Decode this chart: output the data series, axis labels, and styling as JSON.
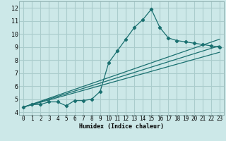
{
  "xlabel": "Humidex (Indice chaleur)",
  "xlim": [
    -0.5,
    23.5
  ],
  "ylim": [
    3.8,
    12.5
  ],
  "bg_color": "#cce8e8",
  "grid_color": "#aacccc",
  "line_color": "#1a7070",
  "xticks": [
    0,
    1,
    2,
    3,
    4,
    5,
    6,
    7,
    8,
    9,
    10,
    11,
    12,
    13,
    14,
    15,
    16,
    17,
    18,
    19,
    20,
    21,
    22,
    23
  ],
  "yticks": [
    4,
    5,
    6,
    7,
    8,
    9,
    10,
    11,
    12
  ],
  "series1_x": [
    0,
    1,
    2,
    3,
    4,
    5,
    6,
    7,
    8,
    9,
    10,
    11,
    12,
    13,
    14,
    15,
    16,
    17,
    18,
    19,
    20,
    21,
    22,
    23
  ],
  "series1_y": [
    4.4,
    4.6,
    4.6,
    4.8,
    4.8,
    4.5,
    4.9,
    4.9,
    5.0,
    5.6,
    7.8,
    8.7,
    9.6,
    10.5,
    11.1,
    11.9,
    10.5,
    9.7,
    9.5,
    9.4,
    9.3,
    9.2,
    9.1,
    9.0
  ],
  "line2_x": [
    0,
    23
  ],
  "line2_y": [
    4.4,
    9.1
  ],
  "line3_x": [
    0,
    23
  ],
  "line3_y": [
    4.4,
    9.6
  ],
  "line4_x": [
    0,
    23
  ],
  "line4_y": [
    4.4,
    8.6
  ],
  "xlabel_fontsize": 6,
  "tick_fontsize": 5.5
}
